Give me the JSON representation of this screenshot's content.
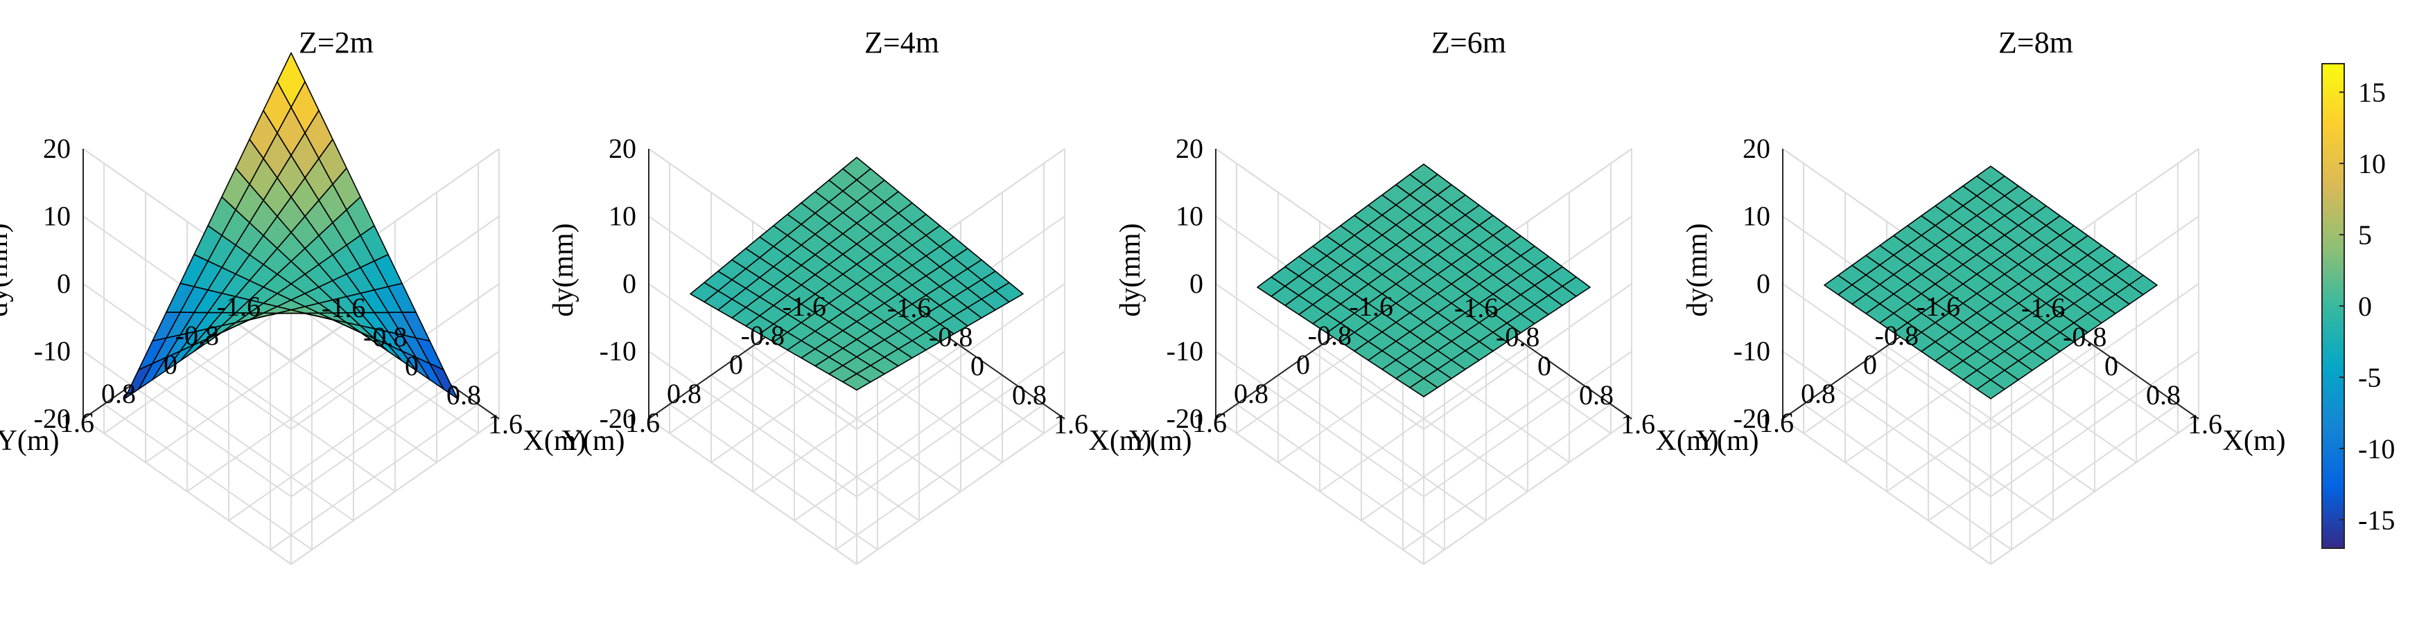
{
  "chart_data": [
    {
      "type": "surface3d",
      "title": "Z=2m",
      "xlabel": "X(m)",
      "ylabel": "Y(m)",
      "zlabel": "dy(mm)",
      "x_ticks": [
        "-1.6",
        "-0.8",
        "0",
        "0.8",
        "1.6"
      ],
      "y_ticks": [
        "-1.6",
        "-0.8",
        "0",
        "0.8",
        "1.6"
      ],
      "z_ticks": [
        "-20",
        "-10",
        "0",
        "10",
        "20"
      ],
      "xlim": [
        -2,
        2
      ],
      "ylim": [
        -2,
        2
      ],
      "zlim": [
        -20,
        20
      ],
      "grid_points": 13,
      "surface": {
        "model": "saddle",
        "dy_at_x_plus_y_plus": 18,
        "dy_at_x_minus_y_minus": 17,
        "dy_at_x_minus_y_plus": -17,
        "dy_at_x_plus_y_minus": -16
      }
    },
    {
      "type": "surface3d",
      "title": "Z=4m",
      "xlabel": "X(m)",
      "ylabel": "Y(m)",
      "zlabel": "dy(mm)",
      "x_ticks": [
        "-1.6",
        "-0.8",
        "0",
        "0.8",
        "1.6"
      ],
      "y_ticks": [
        "-1.6",
        "-0.8",
        "0",
        "0.8",
        "1.6"
      ],
      "z_ticks": [
        "-20",
        "-10",
        "0",
        "10",
        "20"
      ],
      "xlim": [
        -2,
        2
      ],
      "ylim": [
        -2,
        2
      ],
      "zlim": [
        -20,
        20
      ],
      "grid_points": 13,
      "surface": {
        "model": "saddle",
        "dy_at_x_plus_y_plus": 1.5,
        "dy_at_x_minus_y_minus": 1.5,
        "dy_at_x_minus_y_plus": -1.5,
        "dy_at_x_plus_y_minus": -1.5
      }
    },
    {
      "type": "surface3d",
      "title": "Z=6m",
      "xlabel": "X(m)",
      "ylabel": "Y(m)",
      "zlabel": "dy(mm)",
      "x_ticks": [
        "-1.6",
        "-0.8",
        "0",
        "0.8",
        "1.6"
      ],
      "y_ticks": [
        "-1.6",
        "-0.8",
        "0",
        "0.8",
        "1.6"
      ],
      "z_ticks": [
        "-20",
        "-10",
        "0",
        "10",
        "20"
      ],
      "xlim": [
        -2,
        2
      ],
      "ylim": [
        -2,
        2
      ],
      "zlim": [
        -20,
        20
      ],
      "grid_points": 13,
      "surface": {
        "model": "saddle",
        "dy_at_x_plus_y_plus": 0.5,
        "dy_at_x_minus_y_minus": 0.5,
        "dy_at_x_minus_y_plus": -0.5,
        "dy_at_x_plus_y_minus": -0.5
      }
    },
    {
      "type": "surface3d",
      "title": "Z=8m",
      "xlabel": "X(m)",
      "ylabel": "Y(m)",
      "zlabel": "dy(mm)",
      "x_ticks": [
        "-1.6",
        "-0.8",
        "0",
        "0.8",
        "1.6"
      ],
      "y_ticks": [
        "-1.6",
        "-0.8",
        "0",
        "0.8",
        "1.6"
      ],
      "z_ticks": [
        "-20",
        "-10",
        "0",
        "10",
        "20"
      ],
      "xlim": [
        -2,
        2
      ],
      "ylim": [
        -2,
        2
      ],
      "zlim": [
        -20,
        20
      ],
      "grid_points": 13,
      "surface": {
        "model": "saddle",
        "dy_at_x_plus_y_plus": 0.2,
        "dy_at_x_minus_y_minus": 0.2,
        "dy_at_x_minus_y_plus": -0.2,
        "dy_at_x_plus_y_minus": -0.2
      }
    }
  ],
  "colorbar": {
    "colormap": "parula",
    "range": [
      -17,
      17
    ],
    "ticks": [
      "15",
      "10",
      "5",
      "0",
      "-5",
      "-10",
      "-15"
    ],
    "tick_values": [
      15,
      10,
      5,
      0,
      -5,
      -10,
      -15
    ]
  },
  "colors": {
    "grid": "#dcdcdc",
    "axis": "#262626",
    "mesh_edge": "#000000",
    "parula_stops": [
      "#352a87",
      "#0363e1",
      "#1485d4",
      "#06a7c6",
      "#38b99e",
      "#92bf73",
      "#d9ba56",
      "#fcce2e",
      "#f9fb0e"
    ]
  }
}
